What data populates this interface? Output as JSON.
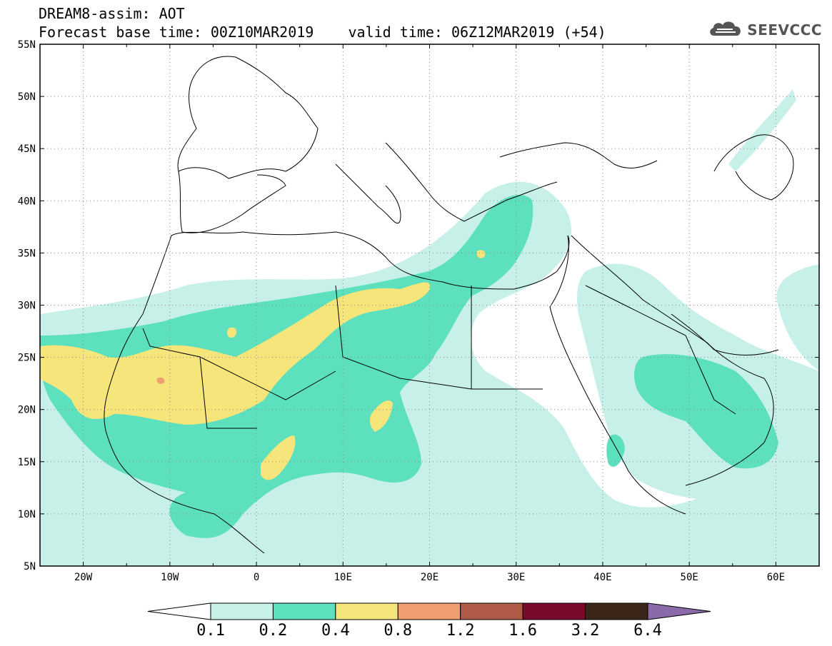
{
  "header": {
    "title_line1": "DREAM8-assim: AOT",
    "base_time_label": "Forecast base time: 00Z10MAR2019",
    "valid_time_label": "valid time: 06Z12MAR2019 (+54)",
    "logo_text": "SEEVCCC",
    "logo_icon": "cloud-icon"
  },
  "map": {
    "projection": "lat-lon",
    "lon_range": [
      -25,
      65
    ],
    "lat_range": [
      5,
      55
    ],
    "lat_labels": [
      "55N",
      "50N",
      "45N",
      "40N",
      "35N",
      "30N",
      "25N",
      "20N",
      "15N",
      "10N",
      "5N"
    ],
    "lon_labels": [
      "20W",
      "10W",
      "0",
      "10E",
      "20E",
      "30E",
      "40E",
      "50E",
      "60E"
    ],
    "grid": "dotted"
  },
  "colorbar": {
    "colors": [
      "#ffffff",
      "#c7f0e8",
      "#5de0bd",
      "#f5e57a",
      "#f0a070",
      "#b05a48",
      "#7a0a2a",
      "#3a2518",
      "#8a6aa8"
    ],
    "labels": [
      "0.1",
      "0.2",
      "0.4",
      "0.8",
      "1.2",
      "1.6",
      "3.2",
      "6.4"
    ]
  }
}
